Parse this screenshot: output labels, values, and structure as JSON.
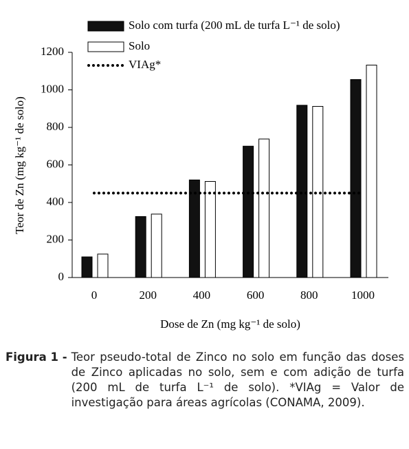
{
  "chart_data": {
    "type": "bar",
    "categories": [
      "0",
      "200",
      "400",
      "600",
      "800",
      "1000"
    ],
    "series": [
      {
        "name": "Solo com turfa (200 mL de turfa L⁻¹ de solo)",
        "color": "#111111",
        "values": [
          110,
          325,
          520,
          700,
          918,
          1055
        ]
      },
      {
        "name": "Solo",
        "color": "#ffffff",
        "values": [
          125,
          338,
          512,
          738,
          912,
          1132
        ]
      }
    ],
    "reference_lines": [
      {
        "name": "VIAg*",
        "value": 450,
        "color": "#000000",
        "style": "dotted"
      }
    ],
    "xlabel": "Dose de Zn (mg kg⁻¹ de solo)",
    "ylabel": "Teor de Zn (mg kg⁻¹ de solo)",
    "ylim": [
      0,
      1200
    ],
    "yticks": [
      0,
      200,
      400,
      600,
      800,
      1000,
      1200
    ],
    "grid": false
  },
  "caption": {
    "label": "Figura 1 -",
    "text": "Teor pseudo-total de Zinco no solo em função das doses de Zinco aplicadas no solo, sem e com adição de turfa (200 mL de turfa L⁻¹ de solo). *VIAg = Valor de investigação para áreas agrícolas (CONAMA, 2009)."
  }
}
